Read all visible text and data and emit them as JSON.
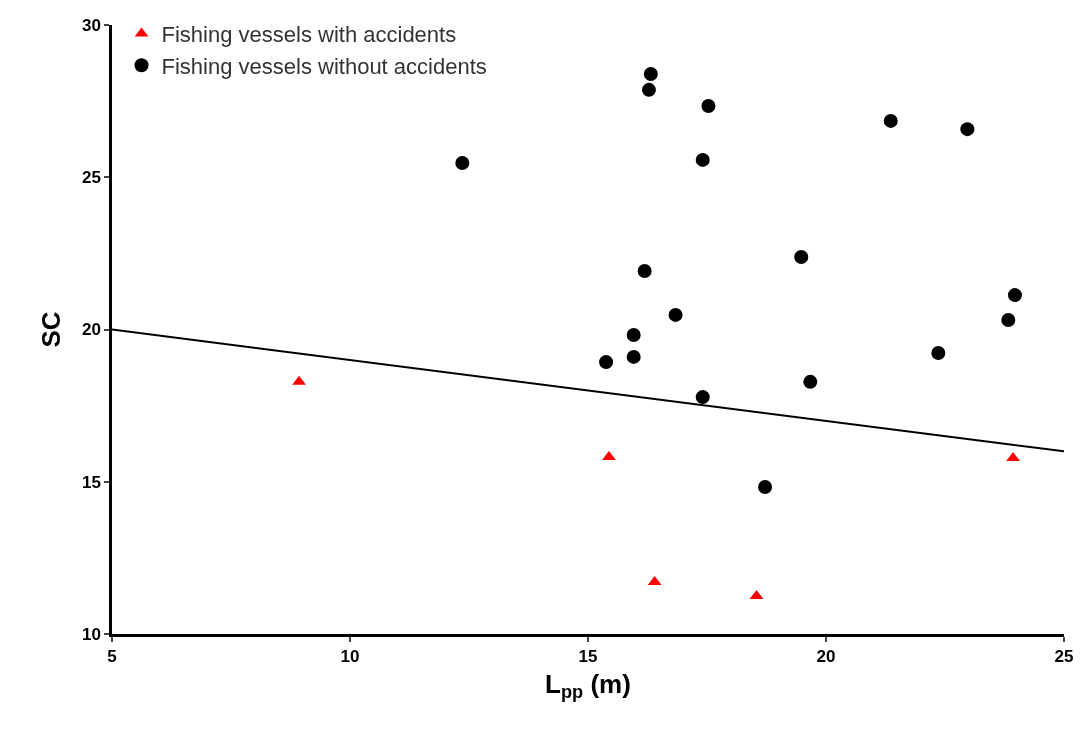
{
  "chart_data": {
    "type": "scatter",
    "xlabel": "L$_{pp}$ (m)",
    "ylabel": "SC",
    "xlim": [
      5,
      25
    ],
    "xticks": [
      5,
      10,
      15,
      20,
      25
    ],
    "ylim": [
      10,
      30
    ],
    "yticks": [
      10,
      15,
      20,
      25,
      30
    ],
    "grid": false,
    "legend": "top left",
    "series": [
      {
        "name": "Fishing vessels with accidents",
        "color": "#ff0000",
        "marker": "triangle",
        "x": [
          8.93,
          15.44,
          16.4,
          18.54,
          23.93
        ],
        "values": [
          18.28,
          15.81,
          11.71,
          11.25,
          15.78
        ]
      },
      {
        "name": "Fishing vessels without accidents",
        "color": "#000000",
        "marker": "circle",
        "x": [
          12.36,
          16.28,
          16.32,
          17.53,
          17.41,
          21.36,
          22.97,
          16.19,
          19.48,
          16.84,
          15.96,
          15.96,
          15.38,
          23.97,
          23.83,
          22.36,
          19.67,
          17.41,
          18.72
        ],
        "values": [
          25.47,
          27.87,
          28.39,
          27.34,
          25.57,
          26.85,
          26.58,
          21.92,
          22.38,
          20.48,
          19.82,
          19.1,
          18.93,
          21.13,
          20.31,
          19.23,
          18.28,
          17.78,
          14.83
        ]
      },
      {
        "type": "line",
        "color": "#000000",
        "line_style": "solid",
        "marker": "none",
        "x": [
          5,
          25
        ],
        "values": [
          20,
          16
        ]
      }
    ]
  }
}
